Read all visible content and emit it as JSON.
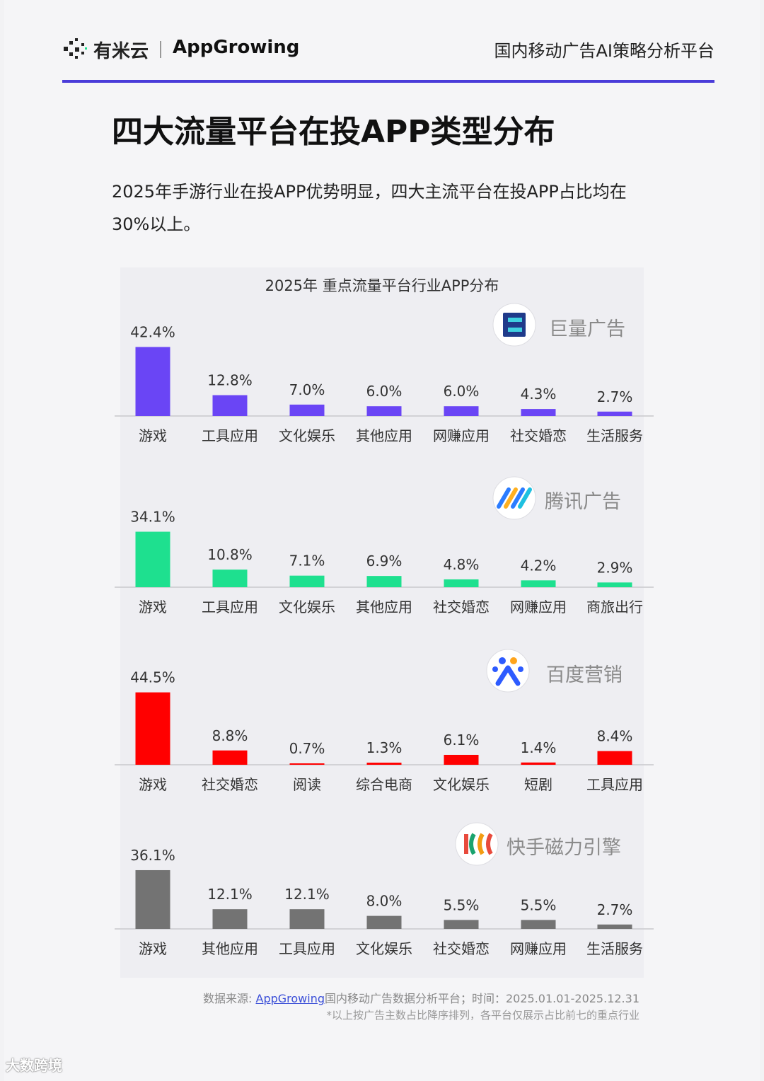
{
  "header": {
    "logo_text": "有米云",
    "app_logo_text": "AppGrowing",
    "tagline": "国内移动广告AI策略分析平台"
  },
  "page_title": "四大流量平台在投APP类型分布",
  "subtitle": "2025年手游行业在投APP优势明显，四大主流平台在投APP占比均在30%以上。",
  "chart_title": "2025年 重点流量平台行业APP分布",
  "footer": {
    "source_prefix": "数据来源: ",
    "source_link": "AppGrowing",
    "source_suffix": "国内移动广告数据分析平台；时间：2025.01.01-2025.12.31",
    "note": "*以上按广告主数占比降序排列，各平台仅展示占比前七的重点行业"
  },
  "watermark": "大数跨境",
  "chart_data": [
    {
      "type": "bar",
      "platform": "巨量广告",
      "color": "#6a45f5",
      "categories": [
        "游戏",
        "工具应用",
        "文化娱乐",
        "其他应用",
        "网赚应用",
        "社交婚恋",
        "生活服务"
      ],
      "values": [
        42.4,
        12.8,
        7.0,
        6.0,
        6.0,
        4.3,
        2.7
      ],
      "labels": [
        "42.4%",
        "12.8%",
        "7.0%",
        "6.0%",
        "6.0%",
        "4.3%",
        "2.7%"
      ]
    },
    {
      "type": "bar",
      "platform": "腾讯广告",
      "color": "#1ee08f",
      "categories": [
        "游戏",
        "工具应用",
        "文化娱乐",
        "其他应用",
        "社交婚恋",
        "网赚应用",
        "商旅出行"
      ],
      "values": [
        34.1,
        10.8,
        7.1,
        6.9,
        4.8,
        4.2,
        2.9
      ],
      "labels": [
        "34.1%",
        "10.8%",
        "7.1%",
        "6.9%",
        "4.8%",
        "4.2%",
        "2.9%"
      ]
    },
    {
      "type": "bar",
      "platform": "百度营销",
      "color": "#ff0000",
      "categories": [
        "游戏",
        "社交婚恋",
        "阅读",
        "综合电商",
        "文化娱乐",
        "短剧",
        "工具应用"
      ],
      "values": [
        44.5,
        8.8,
        0.7,
        1.3,
        6.1,
        1.4,
        8.4
      ],
      "labels": [
        "44.5%",
        "8.8%",
        "0.7%",
        "1.3%",
        "6.1%",
        "1.4%",
        "8.4%"
      ]
    },
    {
      "type": "bar",
      "platform": "快手磁力引擎",
      "color": "#737373",
      "categories": [
        "游戏",
        "其他应用",
        "工具应用",
        "文化娱乐",
        "社交婚恋",
        "网赚应用",
        "生活服务"
      ],
      "values": [
        36.1,
        12.1,
        12.1,
        8.0,
        5.5,
        5.5,
        2.7
      ],
      "labels": [
        "36.1%",
        "12.1%",
        "12.1%",
        "8.0%",
        "5.5%",
        "5.5%",
        "2.7%"
      ]
    }
  ]
}
